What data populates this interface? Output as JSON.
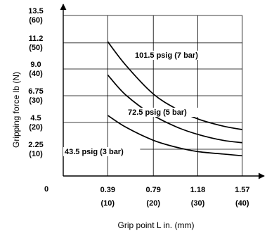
{
  "chart_data": {
    "type": "line",
    "xlabel": "Grip point L in. (mm)",
    "ylabel": "Gripping force lb (N)",
    "origin_label": "0",
    "grid": true,
    "x_ticks": [
      {
        "value": 0.39,
        "label": "0.39",
        "sub": "(10)"
      },
      {
        "value": 0.79,
        "label": "0.79",
        "sub": "(20)"
      },
      {
        "value": 1.18,
        "label": "1.18",
        "sub": "(30)"
      },
      {
        "value": 1.57,
        "label": "1.57",
        "sub": "(40)"
      }
    ],
    "y_ticks": [
      {
        "value": 2.25,
        "label": "2.25",
        "sub": "(10)"
      },
      {
        "value": 4.5,
        "label": "4.5",
        "sub": "(20)"
      },
      {
        "value": 6.75,
        "label": "6.75",
        "sub": "(30)"
      },
      {
        "value": 9.0,
        "label": "9.0",
        "sub": "(40)"
      },
      {
        "value": 11.2,
        "label": "11.2",
        "sub": "(50)"
      },
      {
        "value": 13.5,
        "label": "13.5",
        "sub": "(60)"
      }
    ],
    "series": [
      {
        "name": "101.5 psig (7 bar)",
        "points": [
          [
            0.39,
            11.3
          ],
          [
            0.55,
            9.3
          ],
          [
            0.79,
            6.9
          ],
          [
            1.0,
            5.6
          ],
          [
            1.18,
            4.8
          ],
          [
            1.4,
            4.2
          ],
          [
            1.57,
            3.9
          ]
        ]
      },
      {
        "name": "72.5 psig (5 bar)",
        "points": [
          [
            0.39,
            8.5
          ],
          [
            0.55,
            6.8
          ],
          [
            0.79,
            5.1
          ],
          [
            1.0,
            4.1
          ],
          [
            1.18,
            3.5
          ],
          [
            1.4,
            3.0
          ],
          [
            1.57,
            2.8
          ]
        ]
      },
      {
        "name": "43.5 psig (3 bar)",
        "points": [
          [
            0.39,
            5.1
          ],
          [
            0.55,
            4.1
          ],
          [
            0.79,
            3.0
          ],
          [
            1.0,
            2.4
          ],
          [
            1.18,
            2.05
          ],
          [
            1.4,
            1.85
          ],
          [
            1.57,
            1.7
          ]
        ]
      }
    ]
  }
}
